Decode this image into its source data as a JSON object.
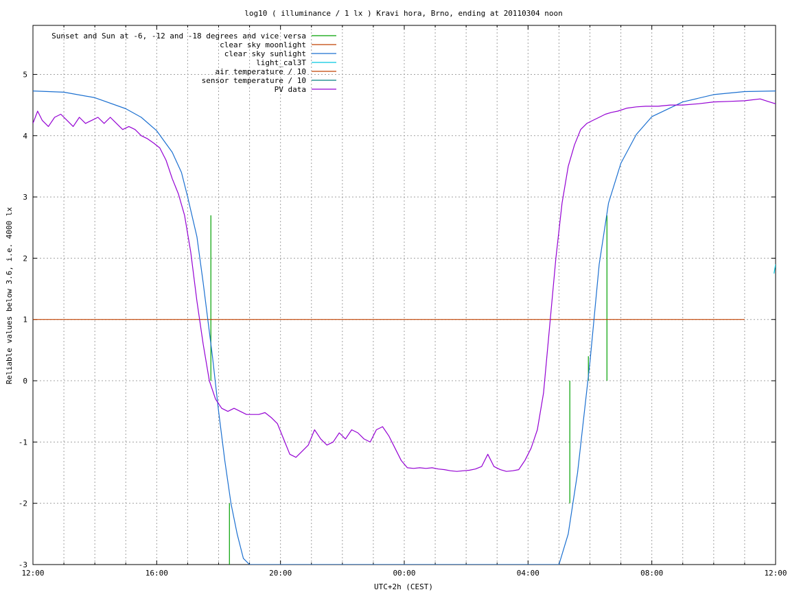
{
  "chart_data": {
    "type": "line",
    "title": "log10 ( illuminance / 1 lx ) Kravi hora, Brno, ending at 20110304 noon",
    "xlabel": "UTC+2h (CEST)",
    "ylabel": "Reliable values below 3.6, i.e. 4000 lx",
    "x_tick_labels": [
      "12:00",
      "16:00",
      "20:00",
      "00:00",
      "04:00",
      "08:00",
      "12:00"
    ],
    "x_ticks_hours": [
      0,
      4,
      8,
      12,
      16,
      20,
      24
    ],
    "y_tick_labels": [
      "-3",
      "-2",
      "-1",
      "0",
      "1",
      "2",
      "3",
      "4",
      "5"
    ],
    "y_ticks": [
      -3,
      -2,
      -1,
      0,
      1,
      2,
      3,
      4,
      5
    ],
    "xlim_hours": [
      0,
      24
    ],
    "ylim": [
      -3,
      5.8
    ],
    "grid": true,
    "legend_placement": "top-left",
    "legend": [
      {
        "name": "Sunset and Sun at -6, -12 and -18 degrees and vice versa",
        "color": "#00a000"
      },
      {
        "name": "clear sky moonlight",
        "color": "#c04000"
      },
      {
        "name": "clear sky sunlight",
        "color": "#1a6fd0"
      },
      {
        "name": "light_cal3T",
        "color": "#00c8e0"
      },
      {
        "name": "air temperature / 10",
        "color": "#c04000"
      },
      {
        "name": "sensor temperature / 10",
        "color": "#008080"
      },
      {
        "name": "PV data",
        "color": "#9400d3"
      }
    ],
    "series": [
      {
        "name": "Sunset and Sun at -6, -12 and -18 degrees and vice versa",
        "type": "vlines",
        "color": "#00a000",
        "x": [
          5.75,
          6.35,
          6.95,
          16.75,
          17.35,
          17.95,
          18.55
        ],
        "y_top": [
          2.7,
          -2.0,
          -3.0,
          -3.0,
          -2.0,
          0.4,
          2.7
        ],
        "y_bottom": [
          0,
          -3,
          -3,
          -3,
          0,
          0,
          0
        ]
      },
      {
        "name": "clear sky moonlight",
        "color": "#c04000",
        "x": [
          0.0,
          23.0
        ],
        "y": [
          1.0,
          1.0
        ]
      },
      {
        "name": "clear sky sunlight",
        "color": "#1a6fd0",
        "x": [
          0.0,
          1.0,
          2.0,
          3.0,
          3.5,
          4.0,
          4.5,
          4.8,
          5.0,
          5.3,
          5.5,
          5.8,
          6.0,
          6.2,
          6.4,
          6.6,
          6.8,
          7.0,
          7.3,
          16.5,
          17.0,
          17.3,
          17.6,
          17.8,
          18.0,
          18.3,
          18.6,
          19.0,
          19.5,
          20.0,
          21.0,
          22.0,
          23.0,
          24.0
        ],
        "y": [
          4.73,
          4.71,
          4.62,
          4.44,
          4.3,
          4.08,
          3.73,
          3.4,
          3.0,
          2.35,
          1.6,
          0.4,
          -0.5,
          -1.3,
          -2.0,
          -2.5,
          -2.9,
          -3.0,
          -3.0,
          -3.0,
          -3.0,
          -2.5,
          -1.5,
          -0.6,
          0.3,
          1.9,
          2.9,
          3.55,
          4.02,
          4.31,
          4.55,
          4.67,
          4.72,
          4.73
        ]
      },
      {
        "name": "light_cal3T",
        "color": "#00c8e0",
        "x": [
          23.95,
          24.0
        ],
        "y": [
          1.75,
          1.9
        ]
      },
      {
        "name": "PV data",
        "color": "#9400d3",
        "x": [
          0.0,
          0.15,
          0.3,
          0.5,
          0.7,
          0.9,
          1.1,
          1.3,
          1.5,
          1.7,
          1.9,
          2.1,
          2.3,
          2.5,
          2.7,
          2.9,
          3.1,
          3.3,
          3.5,
          3.7,
          3.9,
          4.1,
          4.3,
          4.5,
          4.7,
          4.9,
          5.1,
          5.3,
          5.5,
          5.7,
          5.9,
          6.1,
          6.3,
          6.5,
          6.7,
          6.9,
          7.1,
          7.3,
          7.5,
          7.7,
          7.9,
          8.1,
          8.3,
          8.5,
          8.7,
          8.9,
          9.1,
          9.3,
          9.5,
          9.7,
          9.9,
          10.1,
          10.3,
          10.5,
          10.7,
          10.9,
          11.1,
          11.3,
          11.5,
          11.7,
          11.9,
          12.1,
          12.3,
          12.5,
          12.7,
          12.9,
          13.1,
          13.3,
          13.5,
          13.7,
          13.9,
          14.1,
          14.3,
          14.5,
          14.7,
          14.9,
          15.1,
          15.3,
          15.5,
          15.7,
          15.9,
          16.1,
          16.3,
          16.5,
          16.7,
          16.9,
          17.1,
          17.3,
          17.5,
          17.7,
          17.9,
          18.1,
          18.3,
          18.5,
          18.7,
          18.9,
          19.2,
          19.5,
          19.8,
          20.2,
          20.6,
          21.0,
          21.5,
          22.0,
          22.5,
          23.0,
          23.5,
          23.8,
          24.0
        ],
        "y": [
          4.2,
          4.4,
          4.25,
          4.15,
          4.3,
          4.35,
          4.25,
          4.15,
          4.3,
          4.2,
          4.25,
          4.3,
          4.2,
          4.3,
          4.2,
          4.1,
          4.15,
          4.1,
          4.0,
          3.95,
          3.88,
          3.8,
          3.6,
          3.3,
          3.05,
          2.7,
          2.1,
          1.3,
          0.6,
          0.0,
          -0.3,
          -0.45,
          -0.5,
          -0.45,
          -0.5,
          -0.55,
          -0.55,
          -0.55,
          -0.52,
          -0.6,
          -0.7,
          -0.95,
          -1.2,
          -1.25,
          -1.15,
          -1.05,
          -0.8,
          -0.95,
          -1.05,
          -1.0,
          -0.85,
          -0.95,
          -0.8,
          -0.85,
          -0.95,
          -1.0,
          -0.8,
          -0.75,
          -0.9,
          -1.1,
          -1.3,
          -1.42,
          -1.43,
          -1.42,
          -1.43,
          -1.42,
          -1.44,
          -1.45,
          -1.47,
          -1.48,
          -1.47,
          -1.46,
          -1.44,
          -1.4,
          -1.2,
          -1.4,
          -1.45,
          -1.48,
          -1.47,
          -1.45,
          -1.3,
          -1.1,
          -0.8,
          -0.2,
          0.9,
          2.0,
          2.9,
          3.5,
          3.85,
          4.1,
          4.2,
          4.25,
          4.3,
          4.35,
          4.38,
          4.4,
          4.45,
          4.47,
          4.48,
          4.48,
          4.5,
          4.5,
          4.52,
          4.55,
          4.56,
          4.57,
          4.6,
          4.55,
          4.52
        ]
      }
    ]
  }
}
